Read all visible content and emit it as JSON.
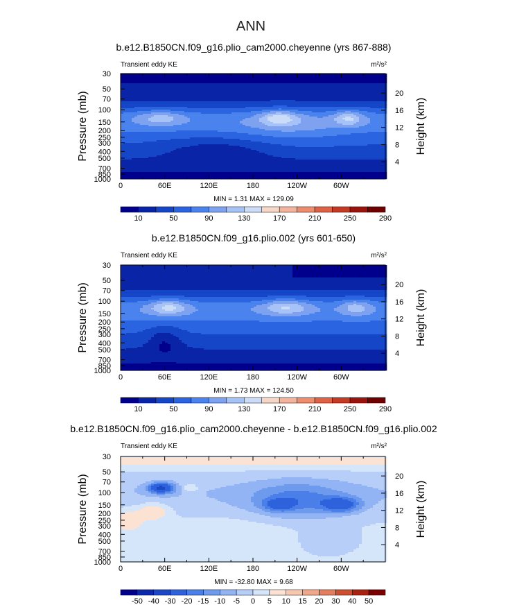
{
  "figure_title": "ANN",
  "colors": {
    "frame": "#000000",
    "abs_palette": [
      "#00008c",
      "#0a24a8",
      "#1646c8",
      "#2a64e0",
      "#4a82ee",
      "#7ea2f0",
      "#a6c2f6",
      "#cbdcf8",
      "#f6d6c6",
      "#f3b39c",
      "#ee8c6e",
      "#e06244",
      "#c43a22",
      "#9a140c",
      "#6e0000"
    ],
    "diff_palette": [
      "#00008c",
      "#0c28ac",
      "#1c48c8",
      "#2e62dc",
      "#4a7ee8",
      "#6e9aee",
      "#92b4f4",
      "#b6cef8",
      "#d6e6fa",
      "#fbe2d2",
      "#f6c8b0",
      "#f1a88a",
      "#e47e5e",
      "#cc5030",
      "#a8220f",
      "#7a0000"
    ]
  },
  "chart_data": [
    {
      "type": "heatmap",
      "title": "b.e12.B1850CN.f09_g16.plio_cam2000.cheyenne (yrs 867-888)",
      "left_label": "Transient eddy KE",
      "units": "m²/s²",
      "xlabel": "",
      "ylabel": "Pressure  (mb)",
      "ylabel_right": "Height  (km)",
      "x_ticks": [
        "0",
        "60E",
        "120E",
        "180",
        "120W",
        "60W"
      ],
      "y_ticks": [
        "30",
        "50",
        "70",
        "100",
        "150",
        "200",
        "250",
        "300",
        "400",
        "500",
        "700",
        "850",
        "1000"
      ],
      "right_ticks": [
        "20",
        "16",
        "12",
        "8",
        "4"
      ],
      "stats": "MIN =    1.31   MAX =  129.09",
      "colorbar_labels": [
        "10",
        "50",
        "90",
        "130",
        "170",
        "210",
        "250",
        "290"
      ],
      "colorbar_levels": [
        10,
        30,
        50,
        70,
        90,
        110,
        130,
        150,
        170,
        190,
        210,
        230,
        250,
        270,
        290
      ]
    },
    {
      "type": "heatmap",
      "title": "b.e12.B1850CN.f09_g16.plio.002 (yrs 601-650)",
      "left_label": "Transient eddy KE",
      "units": "m²/s²",
      "xlabel": "",
      "ylabel": "Pressure  (mb)",
      "ylabel_right": "Height  (km)",
      "x_ticks": [
        "0",
        "60E",
        "120E",
        "180",
        "120W",
        "60W"
      ],
      "y_ticks": [
        "30",
        "50",
        "70",
        "100",
        "150",
        "200",
        "250",
        "300",
        "400",
        "500",
        "700",
        "850",
        "1000"
      ],
      "right_ticks": [
        "20",
        "16",
        "12",
        "8",
        "4"
      ],
      "stats": "MIN =    1.73   MAX =  124.50",
      "colorbar_labels": [
        "10",
        "50",
        "90",
        "130",
        "170",
        "210",
        "250",
        "290"
      ],
      "colorbar_levels": [
        10,
        30,
        50,
        70,
        90,
        110,
        130,
        150,
        170,
        190,
        210,
        230,
        250,
        270,
        290
      ]
    },
    {
      "type": "heatmap",
      "title": "b.e12.B1850CN.f09_g16.plio_cam2000.cheyenne - b.e12.B1850CN.f09_g16.plio.002",
      "left_label": "Transient eddy KE",
      "units": "m²/s²",
      "xlabel": "",
      "ylabel": "Pressure  (mb)",
      "ylabel_right": "Height  (km)",
      "x_ticks": [
        "0",
        "60E",
        "120E",
        "180",
        "120W",
        "60W"
      ],
      "y_ticks": [
        "30",
        "50",
        "70",
        "100",
        "150",
        "200",
        "250",
        "300",
        "400",
        "500",
        "700",
        "850",
        "1000"
      ],
      "right_ticks": [
        "20",
        "16",
        "12",
        "8",
        "4"
      ],
      "stats": "MIN =  -32.80   MAX =    9.68",
      "colorbar_labels": [
        "-50",
        "-40",
        "-30",
        "-20",
        "-15",
        "-10",
        "-5",
        "0",
        "5",
        "10",
        "15",
        "20",
        "30",
        "40",
        "50"
      ],
      "colorbar_levels": [
        -50,
        -40,
        -30,
        -20,
        -15,
        -10,
        -5,
        0,
        5,
        10,
        15,
        20,
        30,
        40,
        50
      ]
    }
  ]
}
